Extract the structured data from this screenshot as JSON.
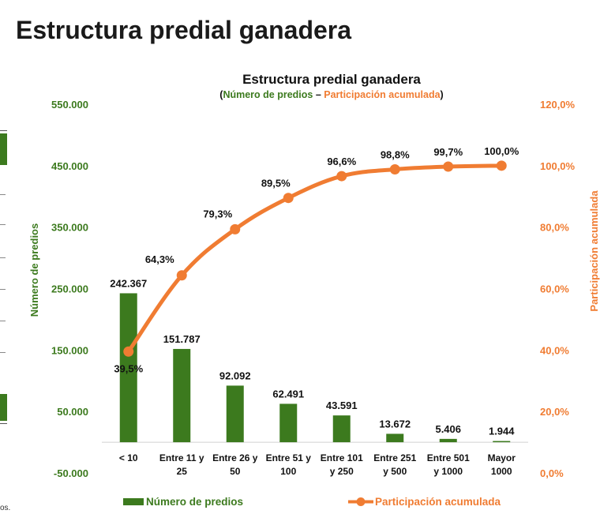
{
  "page": {
    "title": "Estructura predial ganadera",
    "footnote": "os."
  },
  "colors": {
    "bar": "#3c7a1e",
    "line": "#f07c32",
    "text": "#111111"
  },
  "chart_data": {
    "type": "bar+line",
    "title": "Estructura predial ganadera",
    "subtitle_open": "(",
    "subtitle_left": "Número de predios",
    "subtitle_sep": " – ",
    "subtitle_right": "Participación acumulada",
    "subtitle_close": ")",
    "categories": [
      [
        "< 10"
      ],
      [
        "Entre 11 y",
        "25"
      ],
      [
        "Entre 26 y",
        "50"
      ],
      [
        "Entre 51 y",
        "100"
      ],
      [
        "Entre 101",
        "y 250"
      ],
      [
        "Entre 251",
        "y 500"
      ],
      [
        "Entre 501",
        "y 1000"
      ],
      [
        "Mayor",
        "1000"
      ]
    ],
    "bar_series": {
      "name": "Número de predios",
      "values": [
        242367,
        151787,
        92092,
        62491,
        43591,
        13672,
        5406,
        1944
      ],
      "labels": [
        "242.367",
        "151.787",
        "92.092",
        "62.491",
        "43.591",
        "13.672",
        "5.406",
        "1.944"
      ]
    },
    "line_series": {
      "name": "Participación acumulada",
      "values": [
        39.5,
        64.3,
        79.3,
        89.5,
        96.6,
        98.8,
        99.7,
        100.0
      ],
      "labels": [
        "39,5%",
        "64,3%",
        "79,3%",
        "89,5%",
        "96,6%",
        "98,8%",
        "99,7%",
        "100,0%"
      ]
    },
    "y_left": {
      "label": "Número de predios",
      "range": [
        -50000,
        550000
      ],
      "ticks": [
        -50000,
        50000,
        150000,
        250000,
        350000,
        450000,
        550000
      ],
      "tick_labels": [
        "-50.000",
        "50.000",
        "150.000",
        "250.000",
        "350.000",
        "450.000",
        "550.000"
      ]
    },
    "y_right": {
      "label": "Participación acumulada",
      "range": [
        0,
        120
      ],
      "ticks": [
        0,
        20,
        40,
        60,
        80,
        100,
        120
      ],
      "tick_labels": [
        "0,0%",
        "20,0%",
        "40,0%",
        "60,0%",
        "80,0%",
        "100,0%",
        "120,0%"
      ]
    },
    "grid": false,
    "legend_position": "bottom"
  }
}
